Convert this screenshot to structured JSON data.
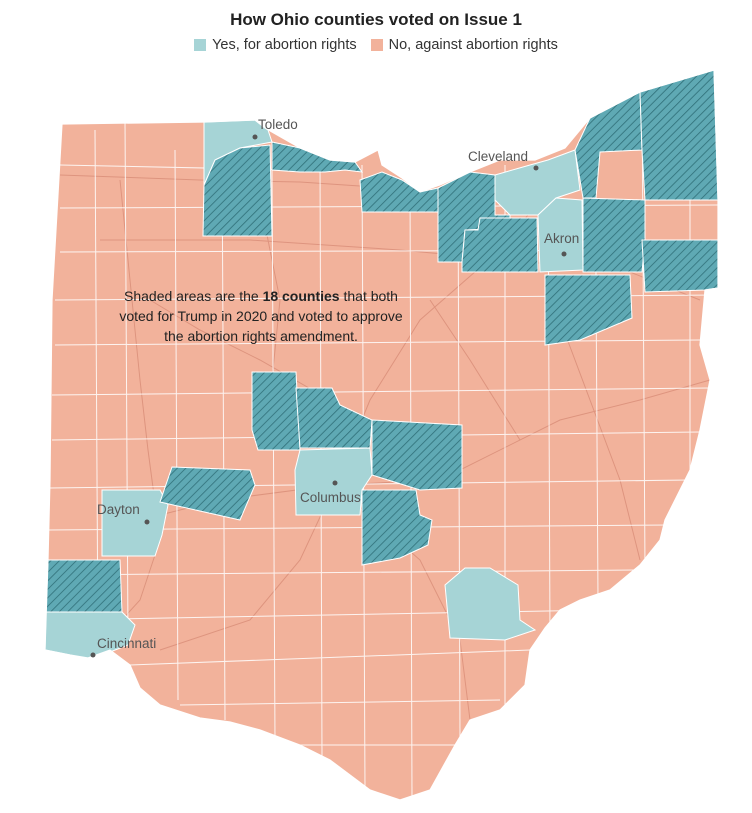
{
  "title": "How Ohio counties voted on Issue 1",
  "legend": [
    {
      "label": "Yes, for abortion rights",
      "color": "#a6d4d6"
    },
    {
      "label": "No, against abortion rights",
      "color": "#f2b29b"
    }
  ],
  "colors": {
    "yes": "#a6d4d6",
    "yes_shaded": "#5fa9b4",
    "no": "#f2b29b",
    "hatch": "#2f6f78",
    "road": "#d98d78",
    "border": "#ffffff"
  },
  "note": {
    "pre": "Shaded areas are the ",
    "bold": "18 counties",
    "post": " that both voted for Trump in 2020 and voted to approve the abortion rights amendment."
  },
  "cities": [
    {
      "name": "Toledo"
    },
    {
      "name": "Cleveland"
    },
    {
      "name": "Akron"
    },
    {
      "name": "Columbus"
    },
    {
      "name": "Dayton"
    },
    {
      "name": "Cincinnati"
    }
  ]
}
